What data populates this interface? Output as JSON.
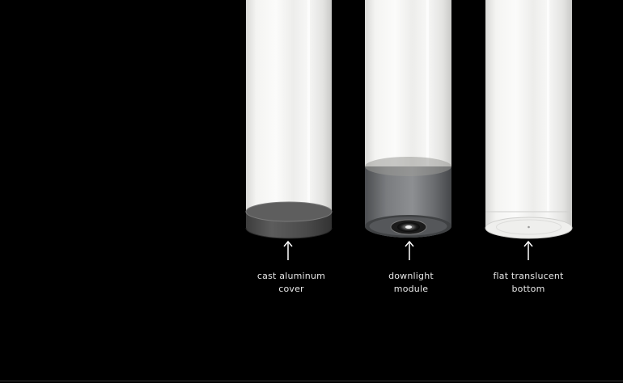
{
  "options": [
    {
      "id": "cast-aluminum-cover",
      "label_line1": "cast aluminum",
      "label_line2": "cover",
      "finish_color": "#5a5a5a"
    },
    {
      "id": "downlight-module",
      "label_line1": "downlight",
      "label_line2": "module",
      "finish_color": "#6e7073"
    },
    {
      "id": "flat-translucent-bottom",
      "label_line1": "flat translucent",
      "label_line2": "bottom",
      "finish_color": "#e9e9e9"
    }
  ],
  "colors": {
    "background": "#000000",
    "glass": "#f2f2f2",
    "label_text": "#e8e8e8",
    "arrow": "#ffffff"
  }
}
